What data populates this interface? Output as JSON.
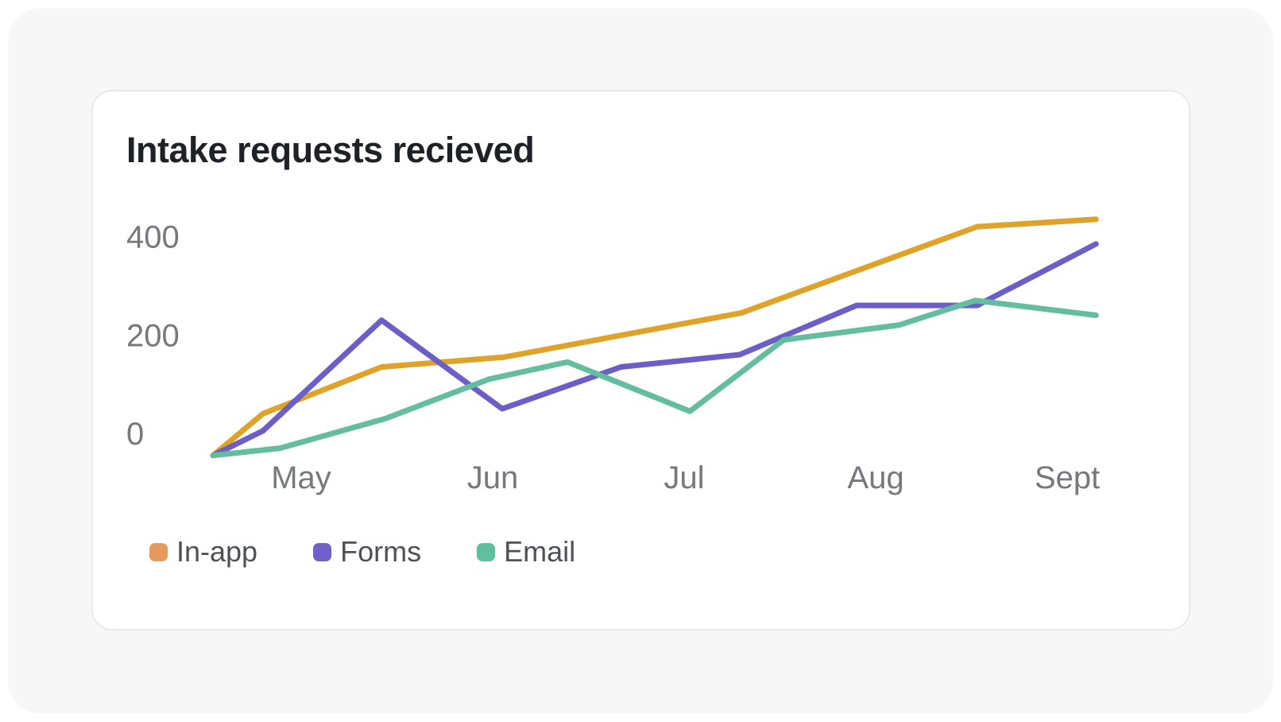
{
  "chart_data": {
    "type": "line",
    "title": "Intake requests recieved",
    "x_axis": {
      "tick_labels": [
        "May",
        "Jun",
        "Jul",
        "Aug",
        "Sept"
      ],
      "tick_values": [
        1,
        2,
        3,
        4,
        5
      ],
      "unit": "month"
    },
    "y_axis": {
      "tick_labels": [
        "400",
        "200",
        "0"
      ],
      "tick_values": [
        400,
        200,
        0
      ],
      "ylim": [
        -60,
        470
      ]
    },
    "grid": false,
    "legend_position": "bottom-left",
    "series": [
      {
        "name": "In-app",
        "line_color": "#dfa32a",
        "legend_color": "#e8995c",
        "points": [
          {
            "x": 0.54,
            "y": -45
          },
          {
            "x": 0.8,
            "y": 40
          },
          {
            "x": 1.42,
            "y": 135
          },
          {
            "x": 2.06,
            "y": 155
          },
          {
            "x": 3.3,
            "y": 245
          },
          {
            "x": 4.53,
            "y": 420
          },
          {
            "x": 5.15,
            "y": 435
          }
        ]
      },
      {
        "name": "Forms",
        "line_color": "#6b5ec6",
        "legend_color": "#7061c9",
        "points": [
          {
            "x": 0.54,
            "y": -45
          },
          {
            "x": 0.8,
            "y": 5
          },
          {
            "x": 1.42,
            "y": 230
          },
          {
            "x": 2.05,
            "y": 50
          },
          {
            "x": 2.67,
            "y": 135
          },
          {
            "x": 3.29,
            "y": 160
          },
          {
            "x": 3.9,
            "y": 260
          },
          {
            "x": 4.53,
            "y": 260
          },
          {
            "x": 5.15,
            "y": 385
          }
        ]
      },
      {
        "name": "Email",
        "line_color": "#63bd9e",
        "legend_color": "#5fbf9f",
        "points": [
          {
            "x": 0.54,
            "y": -45
          },
          {
            "x": 0.89,
            "y": -30
          },
          {
            "x": 1.44,
            "y": 30
          },
          {
            "x": 1.98,
            "y": 110
          },
          {
            "x": 2.39,
            "y": 145
          },
          {
            "x": 3.03,
            "y": 45
          },
          {
            "x": 3.52,
            "y": 190
          },
          {
            "x": 4.12,
            "y": 220
          },
          {
            "x": 4.52,
            "y": 270
          },
          {
            "x": 5.15,
            "y": 240
          }
        ]
      }
    ]
  },
  "colors": {
    "page_bg": "#ffffff",
    "panel_bg": "#f7f7f7",
    "card_bg": "#ffffff",
    "card_border": "#e9e9e6",
    "title_text": "#1e2126",
    "axis_text": "#75797e",
    "legend_text": "#4d5157"
  }
}
